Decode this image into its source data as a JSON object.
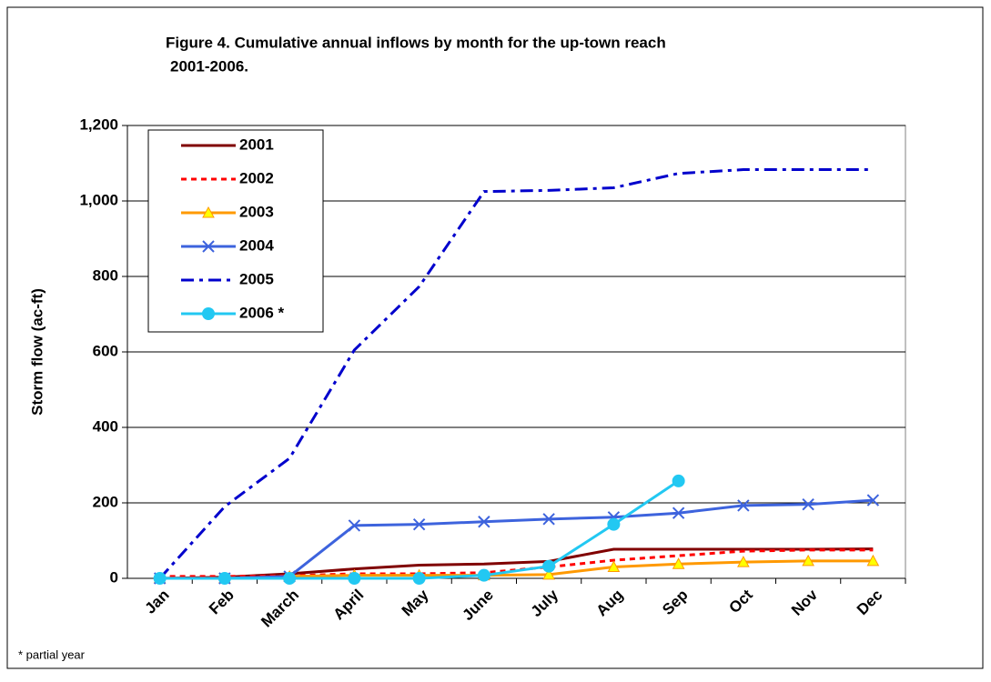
{
  "chart_data": {
    "type": "line",
    "title": [
      "Figure 4.  Cumulative annual inflows by month for the up-town reach",
      "2001-2006."
    ],
    "y_label": "Storm flow (ac-ft)",
    "note": "* partial year",
    "categories": [
      "Jan",
      "Feb",
      "March",
      "April",
      "May",
      "June",
      "July",
      "Aug",
      "Sep",
      "Oct",
      "Nov",
      "Dec"
    ],
    "ylim": [
      0,
      1200
    ],
    "yticks": [
      0,
      200,
      400,
      600,
      800,
      {
        "value": 1000,
        "label": "1,000"
      },
      {
        "value": 1200,
        "label": "1,200"
      }
    ],
    "grid": true,
    "legend": "upper-left",
    "series": [
      {
        "name": "2001",
        "color": "#800000",
        "line_style": "solid",
        "marker": "none",
        "values": [
          0,
          3,
          12,
          25,
          35,
          38,
          45,
          77,
          77,
          77,
          77,
          78
        ]
      },
      {
        "name": "2002",
        "color": "#ff0000",
        "line_style": "dotted",
        "marker": "none",
        "values": [
          5,
          5,
          7,
          12,
          12,
          15,
          30,
          48,
          60,
          72,
          75,
          75
        ]
      },
      {
        "name": "2003",
        "color": "#ff9900",
        "line_style": "solid",
        "marker": "triangle",
        "values": [
          0,
          0,
          5,
          8,
          8,
          8,
          10,
          30,
          38,
          43,
          46,
          46
        ]
      },
      {
        "name": "2004",
        "color": "#3d63dd",
        "line_style": "solid",
        "marker": "x",
        "values": [
          0,
          0,
          5,
          140,
          143,
          150,
          157,
          162,
          173,
          193,
          196,
          207
        ]
      },
      {
        "name": "2005",
        "color": "#0000cc",
        "line_style": "dashdot",
        "marker": "none",
        "values": [
          0,
          190,
          318,
          605,
          773,
          1025,
          1028,
          1035,
          1073,
          1083,
          1083,
          1083
        ]
      },
      {
        "name": "2006 *",
        "color": "#22c8f2",
        "line_style": "solid",
        "marker": "circle",
        "values": [
          0,
          0,
          0,
          0,
          0,
          8,
          32,
          143,
          258,
          null,
          null,
          null
        ]
      }
    ]
  }
}
